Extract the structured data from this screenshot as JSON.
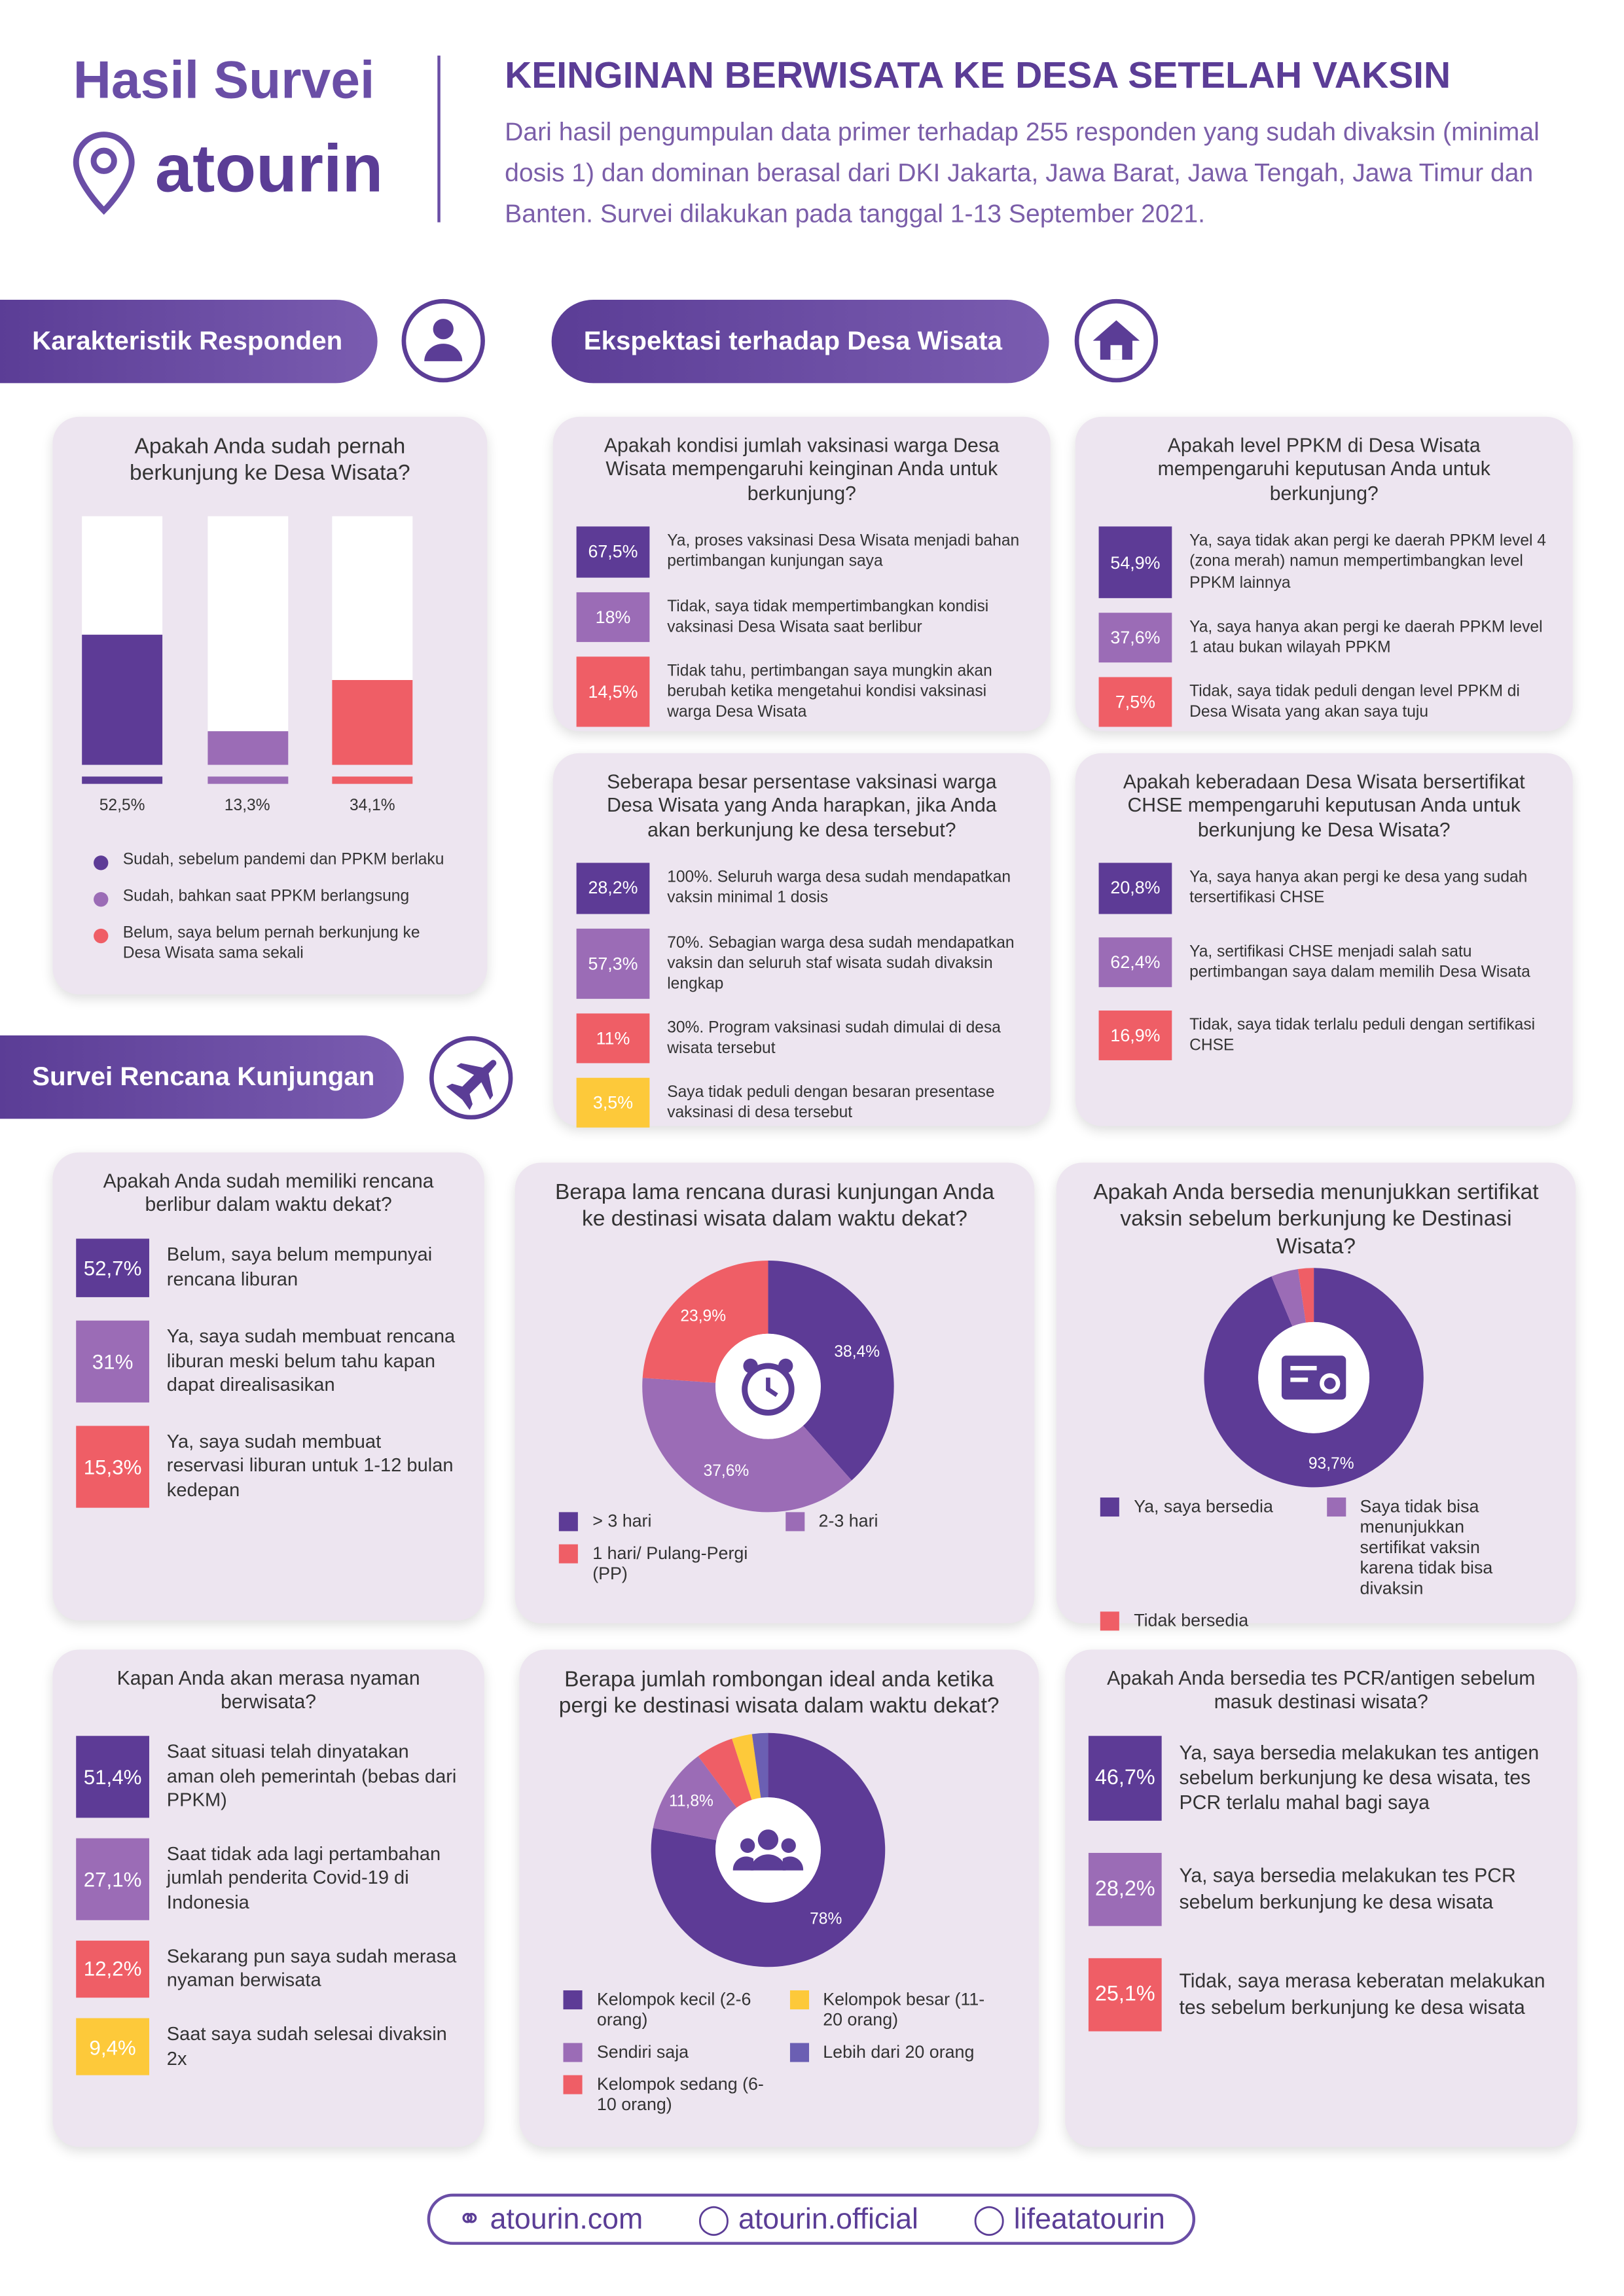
{
  "header": {
    "brand_title": "Hasil Survei",
    "brand": "atourin",
    "title": "KEINGINAN BERWISATA KE DESA SETELAH VAKSIN",
    "description": "Dari hasil pengumpulan data primer terhadap 255 responden yang sudah divaksin (minimal dosis 1) dan dominan berasal dari DKI Jakarta, Jawa Barat, Jawa Tengah, Jawa Timur dan Banten. Survei dilakukan pada tanggal 1-13 September 2021."
  },
  "sections": [
    "Karakteristik Responden",
    "Ekspektasi terhadap Desa Wisata",
    "Survei Rencana Kunjungan"
  ],
  "panels": [
    {
      "type": "columns",
      "question": "Apakah Anda sudah pernah berkunjung ke Desa Wisata?",
      "ylim": [
        0,
        100
      ],
      "items": [
        {
          "value": 52.5,
          "value_label": "52,5%",
          "label": "Sudah, sebelum pandemi dan PPKM berlaku",
          "color": "#5d3b96"
        },
        {
          "value": 13.3,
          "value_label": "13,3%",
          "label": "Sudah, bahkan saat PPKM berlangsung",
          "color": "#9b6cb6"
        },
        {
          "value": 34.1,
          "value_label": "34,1%",
          "label": "Belum, saya belum pernah berkunjung ke Desa Wisata sama sekali",
          "color": "#ef5e66"
        }
      ]
    },
    {
      "type": "list",
      "question": "Apakah kondisi jumlah vaksinasi warga Desa Wisata mempengaruhi keinginan Anda untuk berkunjung?",
      "items": [
        {
          "value": 67.5,
          "value_label": "67,5%",
          "label": "Ya, proses vaksinasi Desa Wisata menjadi bahan pertimbangan kunjungan saya",
          "color": "#5d3b96"
        },
        {
          "value": 18,
          "value_label": "18%",
          "label": "Tidak, saya tidak mempertimbangkan kondisi vaksinasi Desa Wisata saat berlibur",
          "color": "#9b6cb6"
        },
        {
          "value": 14.5,
          "value_label": "14,5%",
          "label": "Tidak tahu, pertimbangan saya mungkin akan berubah ketika mengetahui kondisi vaksinasi warga Desa Wisata",
          "color": "#ef5e66"
        }
      ]
    },
    {
      "type": "list",
      "question": "Apakah level PPKM di Desa Wisata mempengaruhi keputusan Anda untuk berkunjung?",
      "items": [
        {
          "value": 54.9,
          "value_label": "54,9%",
          "label": "Ya, saya tidak akan pergi ke daerah PPKM level 4 (zona merah) namun mempertimbangkan level PPKM lainnya",
          "color": "#5d3b96"
        },
        {
          "value": 37.6,
          "value_label": "37,6%",
          "label": "Ya, saya hanya akan pergi ke daerah PPKM level 1 atau bukan wilayah PPKM",
          "color": "#9b6cb6"
        },
        {
          "value": 7.5,
          "value_label": "7,5%",
          "label": "Tidak, saya tidak peduli dengan level PPKM di Desa Wisata yang akan saya tuju",
          "color": "#ef5e66"
        }
      ]
    },
    {
      "type": "list",
      "question": "Seberapa besar persentase vaksinasi warga Desa Wisata yang Anda harapkan, jika Anda akan berkunjung ke desa tersebut?",
      "items": [
        {
          "value": 28.2,
          "value_label": "28,2%",
          "label": "100%. Seluruh warga desa sudah mendapatkan vaksin minimal 1 dosis",
          "color": "#5d3b96"
        },
        {
          "value": 57.3,
          "value_label": "57,3%",
          "label": "70%. Sebagian warga desa sudah mendapatkan vaksin dan seluruh staf wisata sudah divaksin lengkap",
          "color": "#9b6cb6"
        },
        {
          "value": 11,
          "value_label": "11%",
          "label": "30%. Program vaksinasi sudah dimulai di desa wisata tersebut",
          "color": "#ef5e66"
        },
        {
          "value": 3.5,
          "value_label": "3,5%",
          "label": "Saya tidak peduli dengan besaran presentase vaksinasi di desa tersebut",
          "color": "#fdc93a"
        }
      ]
    },
    {
      "type": "list",
      "question": "Apakah keberadaan Desa Wisata bersertifikat CHSE mempengaruhi keputusan Anda untuk berkunjung ke Desa Wisata?",
      "items": [
        {
          "value": 20.8,
          "value_label": "20,8%",
          "label": "Ya, saya hanya akan pergi ke desa yang sudah tersertifikasi CHSE",
          "color": "#5d3b96"
        },
        {
          "value": 62.4,
          "value_label": "62,4%",
          "label": "Ya, sertifikasi CHSE menjadi salah satu pertimbangan saya dalam memilih Desa Wisata",
          "color": "#9b6cb6"
        },
        {
          "value": 16.9,
          "value_label": "16,9%",
          "label": "Tidak, saya tidak terlalu peduli dengan sertifikasi CHSE",
          "color": "#ef5e66"
        }
      ]
    },
    {
      "type": "list",
      "question": "Apakah Anda sudah memiliki rencana berlibur dalam waktu dekat?",
      "items": [
        {
          "value": 52.7,
          "value_label": "52,7%",
          "label": "Belum, saya belum mempunyai rencana liburan",
          "color": "#5d3b96"
        },
        {
          "value": 31,
          "value_label": "31%",
          "label": "Ya, saya sudah membuat rencana liburan meski belum tahu kapan dapat direalisasikan",
          "color": "#9b6cb6"
        },
        {
          "value": 15.3,
          "value_label": "15,3%",
          "label": "Ya, saya sudah membuat reservasi liburan untuk 1-12 bulan kedepan",
          "color": "#ef5e66"
        }
      ]
    },
    {
      "type": "donut",
      "question": "Berapa lama rencana durasi kunjungan Anda ke destinasi wisata dalam waktu dekat?",
      "items": [
        {
          "value": 38.4,
          "value_label": "38,4%",
          "label": "> 3 hari",
          "color": "#5d3b96"
        },
        {
          "value": 37.6,
          "value_label": "37,6%",
          "label": "2-3 hari",
          "color": "#9b6cb6"
        },
        {
          "value": 23.9,
          "value_label": "23,9%",
          "label": "1 hari/ Pulang-Pergi (PP)",
          "color": "#ef5e66"
        }
      ]
    },
    {
      "type": "donut",
      "question": "Apakah Anda bersedia menunjukkan sertifikat vaksin sebelum berkunjung ke Destinasi Wisata?",
      "items": [
        {
          "value": 93.7,
          "value_label": "93,7%",
          "label": "Ya, saya bersedia",
          "color": "#5d3b96"
        },
        {
          "value": 4,
          "label": "Saya tidak bisa menunjukkan sertifikat vaksin karena tidak bisa divaksin",
          "color": "#9b6cb6"
        },
        {
          "value": 2.3,
          "label": "Tidak bersedia",
          "color": "#ef5e66"
        }
      ]
    },
    {
      "type": "list",
      "question": "Kapan Anda akan merasa nyaman berwisata?",
      "items": [
        {
          "value": 51.4,
          "value_label": "51,4%",
          "label": "Saat situasi telah dinyatakan aman oleh pemerintah (bebas dari PPKM)",
          "color": "#5d3b96"
        },
        {
          "value": 27.1,
          "value_label": "27,1%",
          "label": "Saat tidak ada lagi pertambahan jumlah penderita Covid-19 di Indonesia",
          "color": "#9b6cb6"
        },
        {
          "value": 12.2,
          "value_label": "12,2%",
          "label": "Sekarang pun saya sudah merasa nyaman berwisata",
          "color": "#ef5e66"
        },
        {
          "value": 9.4,
          "value_label": "9,4%",
          "label": "Saat saya sudah selesai divaksin 2x",
          "color": "#fdc93a"
        }
      ]
    },
    {
      "type": "donut",
      "question": "Berapa jumlah rombongan ideal anda ketika pergi ke destinasi wisata dalam waktu dekat?",
      "items": [
        {
          "value": 78,
          "value_label": "78%",
          "label": "Kelompok kecil (2-6 orang)",
          "color": "#5d3b96"
        },
        {
          "value": 11.8,
          "value_label": "11,8%",
          "label": "Sendiri saja",
          "color": "#9b6cb6"
        },
        {
          "value": 5.2,
          "label": "Kelompok sedang (6-10 orang)",
          "color": "#ef5e66"
        },
        {
          "value": 2.8,
          "label": "Kelompok besar (11-20 orang)",
          "color": "#fdc93a"
        },
        {
          "value": 2.2,
          "label": "Lebih dari 20 orang",
          "color": "#6b5fb3"
        }
      ]
    },
    {
      "type": "list",
      "question": "Apakah Anda bersedia tes PCR/antigen sebelum masuk destinasi wisata?",
      "items": [
        {
          "value": 46.7,
          "value_label": "46,7%",
          "label": "Ya, saya bersedia melakukan tes antigen sebelum berkunjung ke desa wisata, tes PCR terlalu mahal bagi saya",
          "color": "#5d3b96"
        },
        {
          "value": 28.2,
          "value_label": "28,2%",
          "label": "Ya, saya bersedia melakukan tes PCR sebelum berkunjung ke desa wisata",
          "color": "#9b6cb6"
        },
        {
          "value": 25.1,
          "value_label": "25,1%",
          "label": "Tidak, saya merasa keberatan melakukan tes sebelum berkunjung ke desa wisata",
          "color": "#ef5e66"
        }
      ]
    }
  ],
  "footer": [
    "atourin.com",
    "atourin.official",
    "lifeatatourin"
  ]
}
